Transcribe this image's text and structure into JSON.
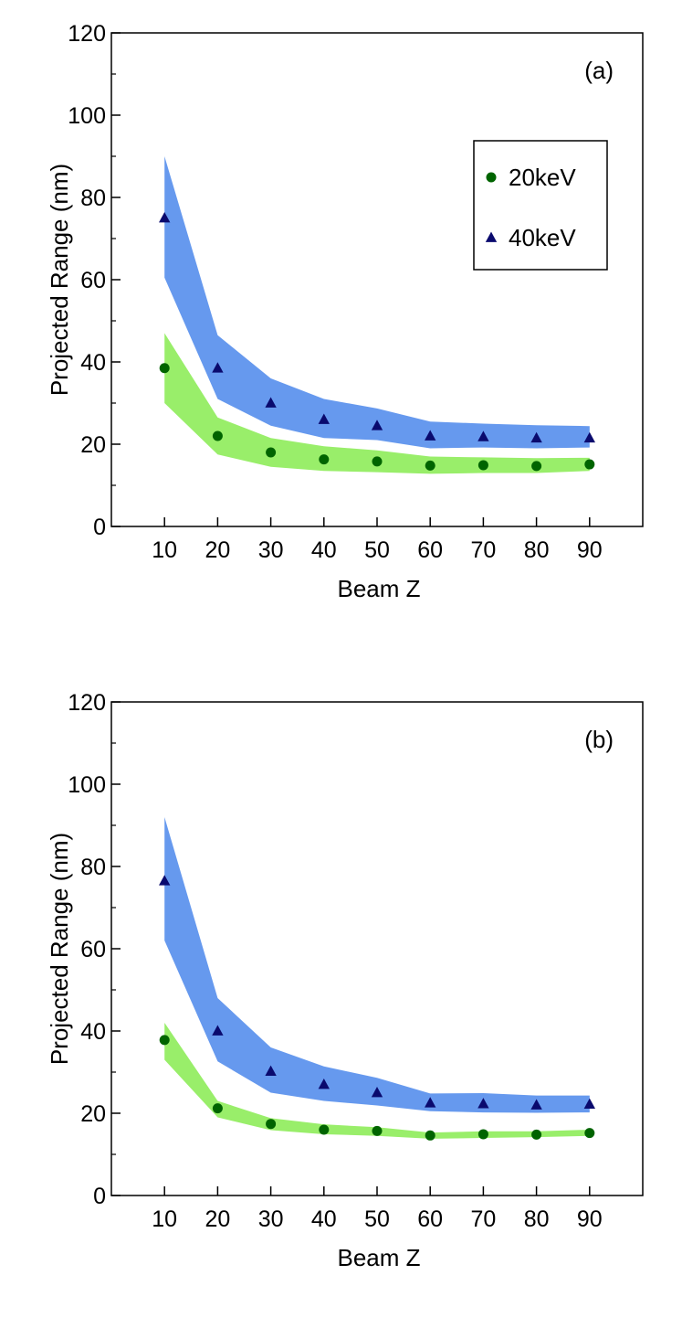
{
  "chart_data": [
    {
      "type": "scatter",
      "panel_label": "(a)",
      "xlabel": "Beam Z",
      "ylabel": "Projected Range (nm)",
      "xlim": [
        0,
        100
      ],
      "ylim": [
        0,
        120
      ],
      "x_ticks": [
        "10",
        "20",
        "30",
        "40",
        "50",
        "60",
        "70",
        "80",
        "90"
      ],
      "y_ticks": [
        "0",
        "20",
        "40",
        "60",
        "80",
        "100",
        "120"
      ],
      "legend": {
        "position": "top-right",
        "entries": [
          "20keV",
          "40keV"
        ]
      },
      "series": [
        {
          "name": "20keV",
          "marker": "circle",
          "color": "#006400",
          "band_color": "#99ee6a",
          "x": [
            10,
            20,
            30,
            40,
            50,
            60,
            70,
            80,
            90
          ],
          "values": [
            38.5,
            22,
            18,
            16.3,
            15.8,
            14.8,
            14.9,
            14.7,
            15.1
          ],
          "band_upper": [
            47,
            26.5,
            21.5,
            19.5,
            18.5,
            17,
            16.8,
            16.6,
            16.7
          ],
          "band_lower": [
            30,
            17.5,
            14.5,
            13.5,
            13.2,
            12.8,
            13,
            13,
            13.5
          ]
        },
        {
          "name": "40keV",
          "marker": "triangle",
          "color": "#0a0a6e",
          "band_color": "#6699ee",
          "x": [
            10,
            20,
            30,
            40,
            50,
            60,
            70,
            80,
            90
          ],
          "values": [
            75,
            38.5,
            30,
            26,
            24.5,
            22,
            21.8,
            21.5,
            21.5
          ],
          "band_upper": [
            90,
            46.5,
            36,
            31,
            28.7,
            25.5,
            25,
            24.6,
            24.4
          ],
          "band_lower": [
            60.5,
            31,
            24.5,
            21.5,
            21,
            19,
            19.2,
            19,
            19.2
          ]
        }
      ]
    },
    {
      "type": "scatter",
      "panel_label": "(b)",
      "xlabel": "Beam Z",
      "ylabel": "Projected Range (nm)",
      "xlim": [
        0,
        100
      ],
      "ylim": [
        0,
        120
      ],
      "x_ticks": [
        "10",
        "20",
        "30",
        "40",
        "50",
        "60",
        "70",
        "80",
        "90"
      ],
      "y_ticks": [
        "0",
        "20",
        "40",
        "60",
        "80",
        "100",
        "120"
      ],
      "series": [
        {
          "name": "20keV",
          "marker": "circle",
          "color": "#006400",
          "band_color": "#99ee6a",
          "x": [
            10,
            20,
            30,
            40,
            50,
            60,
            70,
            80,
            90
          ],
          "values": [
            37.8,
            21.2,
            17.4,
            16,
            15.7,
            14.6,
            14.9,
            14.8,
            15.2
          ],
          "band_upper": [
            42,
            23,
            18.8,
            17.3,
            16.6,
            15.3,
            15.6,
            15.6,
            16
          ],
          "band_lower": [
            33,
            19,
            15.9,
            14.9,
            14.5,
            13.8,
            14,
            14.2,
            14.5
          ]
        },
        {
          "name": "40keV",
          "marker": "triangle",
          "color": "#0a0a6e",
          "band_color": "#6699ee",
          "x": [
            10,
            20,
            30,
            40,
            50,
            60,
            70,
            80,
            90
          ],
          "values": [
            76.5,
            40,
            30.2,
            27,
            25,
            22.5,
            22.3,
            22,
            22.2
          ],
          "band_upper": [
            92,
            48,
            36,
            31.4,
            28.6,
            24.8,
            24.9,
            24.3,
            24.3
          ],
          "band_lower": [
            62,
            32.6,
            25,
            23,
            21.9,
            20.5,
            20.2,
            20.1,
            20.2
          ]
        }
      ]
    }
  ]
}
